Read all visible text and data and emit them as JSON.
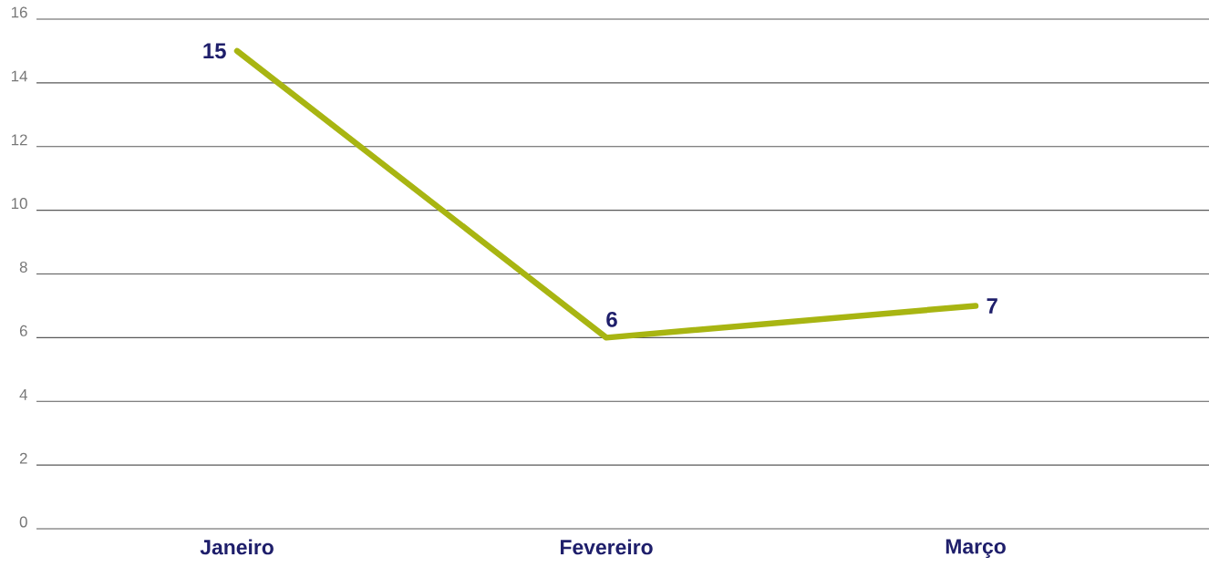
{
  "chart_data": {
    "type": "line",
    "categories": [
      "Janeiro",
      "Fevereiro",
      "Março"
    ],
    "values": [
      15,
      6,
      7
    ],
    "color": "#a8b512",
    "ylim": [
      0,
      16
    ],
    "yticks": [
      0,
      2,
      4,
      6,
      8,
      10,
      12,
      14,
      16
    ],
    "grid": "y",
    "data_labels": true
  }
}
